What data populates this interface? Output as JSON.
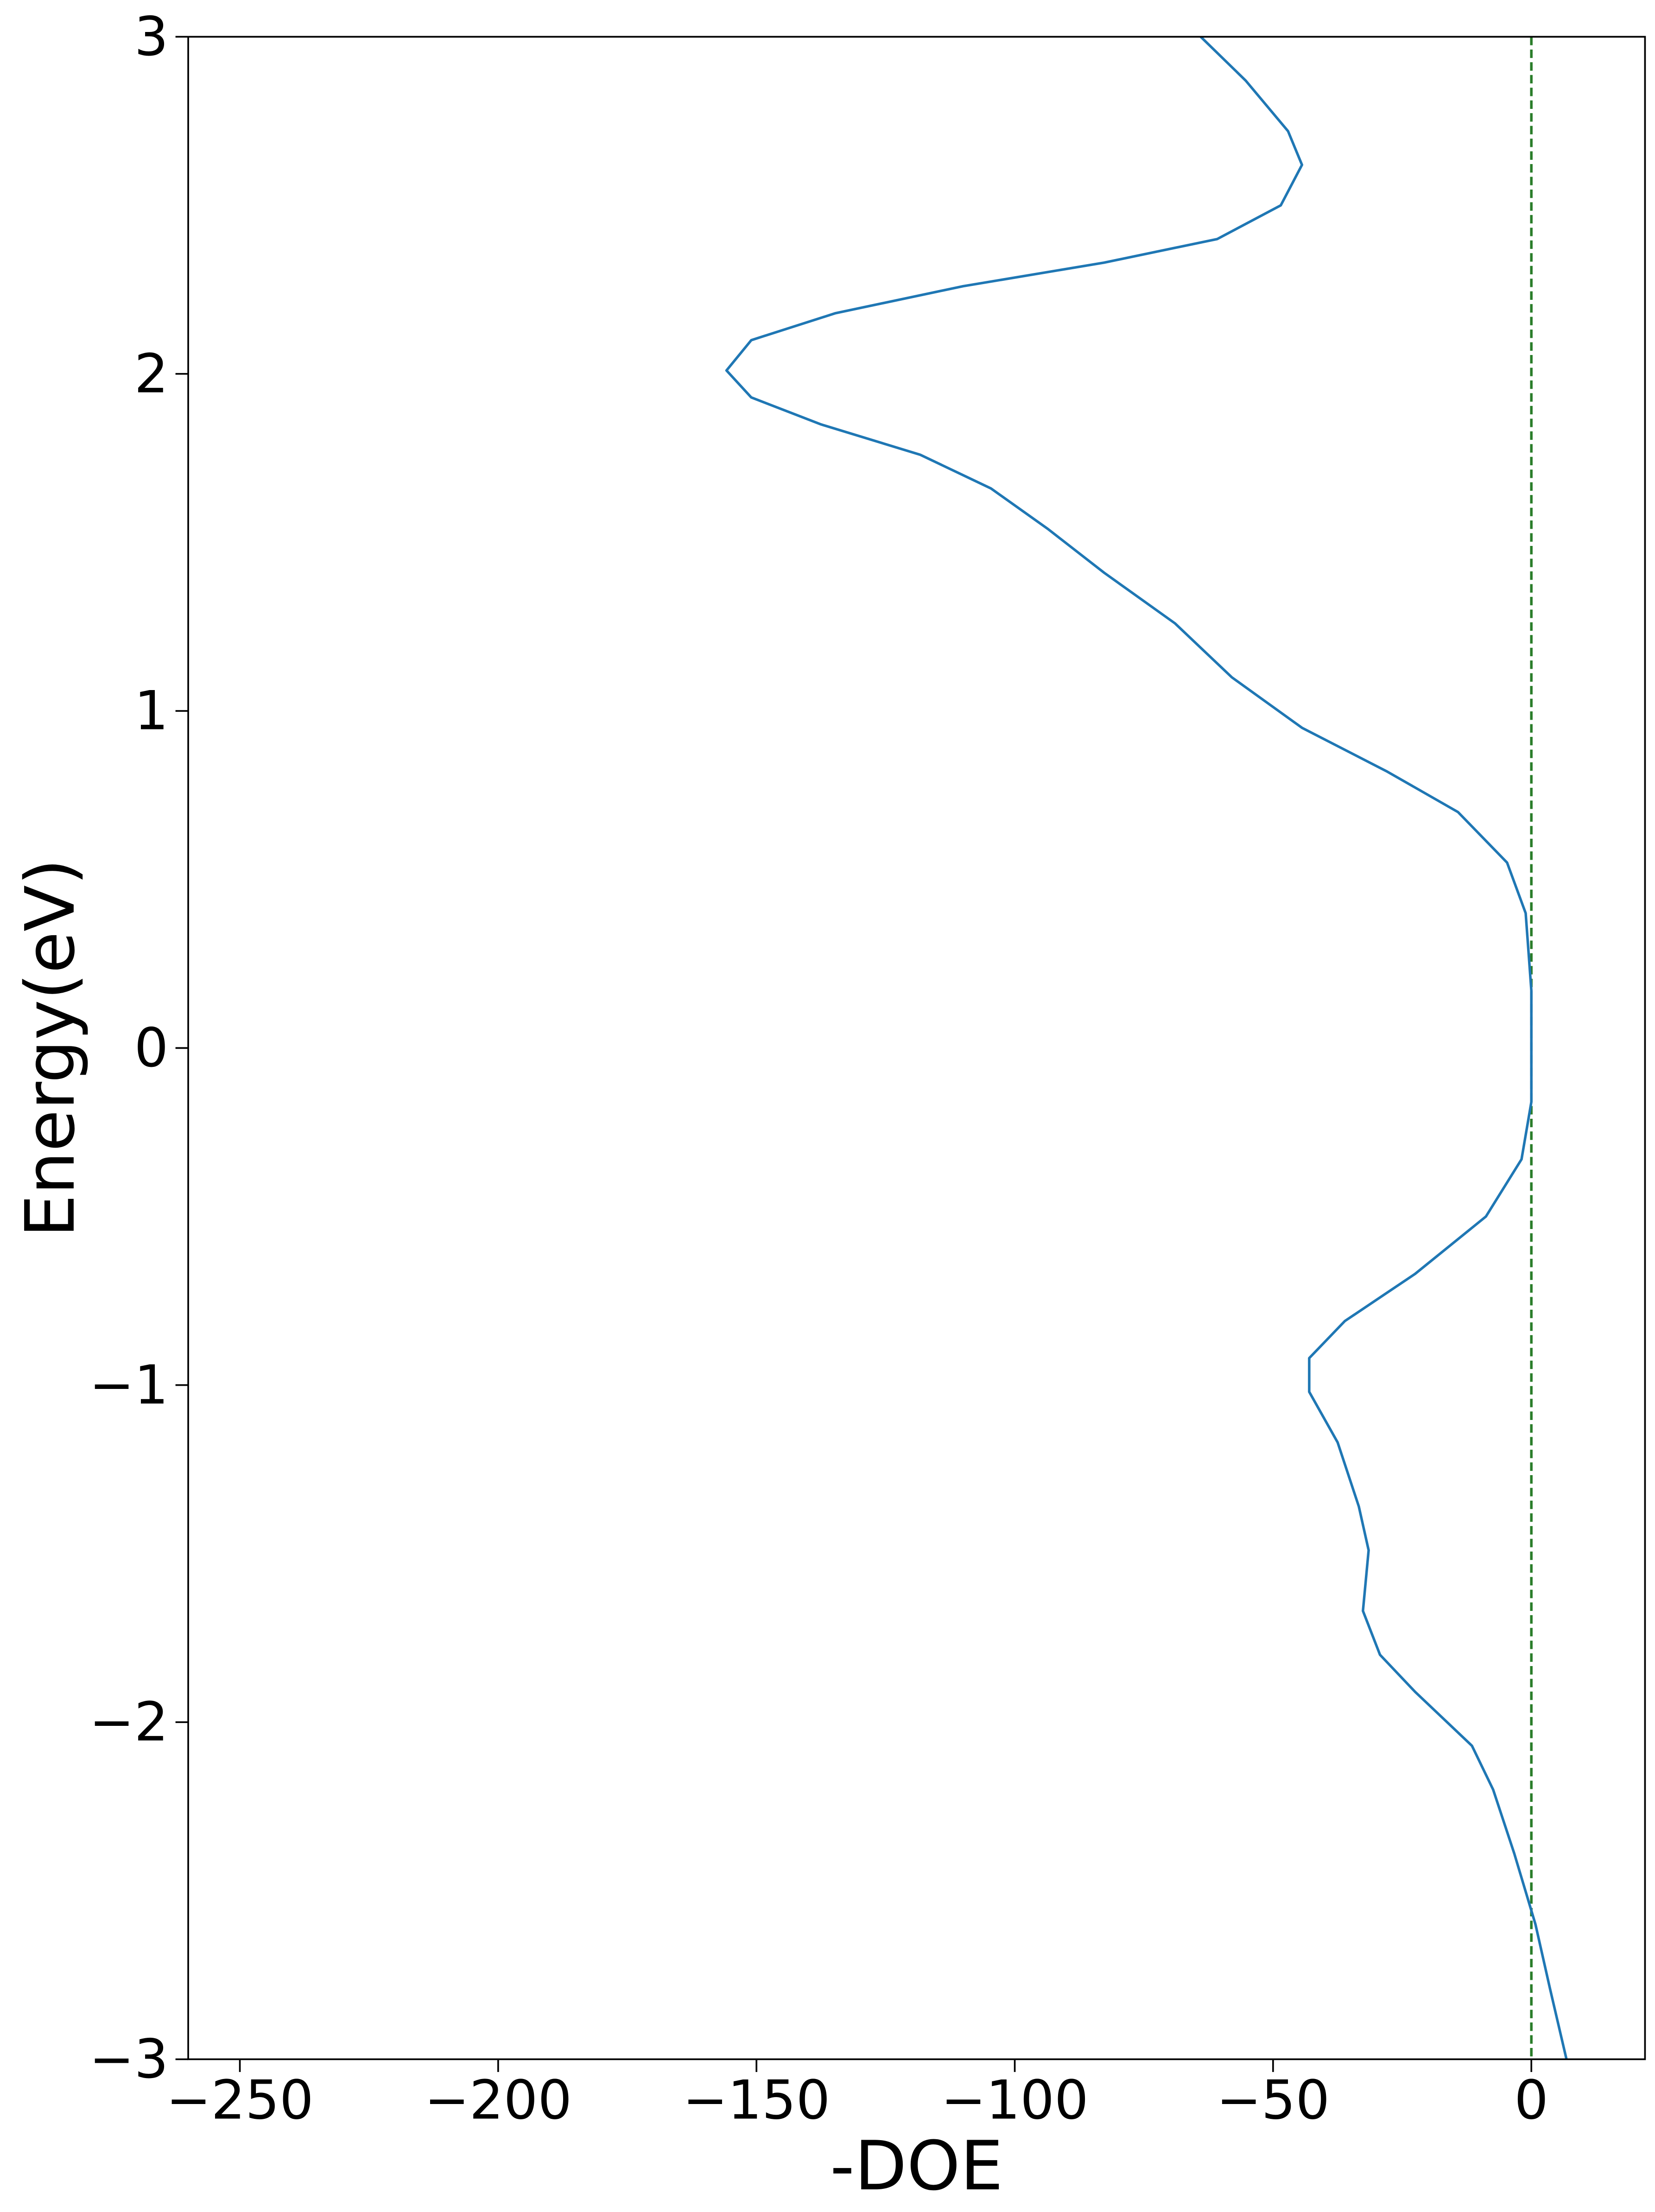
{
  "chart_data": {
    "type": "line",
    "xlabel": "-DOE",
    "ylabel": "Energy(eV)",
    "xlim": [
      -260,
      22
    ],
    "ylim": [
      -3,
      3
    ],
    "xticks": [
      {
        "value": -250,
        "label": "−250"
      },
      {
        "value": -200,
        "label": "−200"
      },
      {
        "value": -150,
        "label": "−150"
      },
      {
        "value": -100,
        "label": "−100"
      },
      {
        "value": -50,
        "label": "−50"
      },
      0
    ],
    "yticks": [
      {
        "value": -3,
        "label": "−3"
      },
      {
        "value": -2,
        "label": "−2"
      },
      {
        "value": -1,
        "label": "−1"
      },
      0,
      1,
      2,
      3
    ],
    "vline": {
      "x": 0,
      "color": "#2a7d2a",
      "style": "dashed"
    },
    "x": [
      -64,
      -55.3,
      -47.1,
      -44.4,
      -48.5,
      -60.8,
      -82.7,
      -110,
      -134.7,
      -151,
      -155.8,
      -151,
      -137.5,
      -118.3,
      -104.6,
      -93.6,
      -82.7,
      -69,
      -58,
      -44.4,
      -27.9,
      -14.2,
      -4.7,
      -1.1,
      0,
      0,
      -1.9,
      -8.8,
      -22.5,
      -36.1,
      -43,
      -43,
      -37.5,
      -33.4,
      -31.5,
      -32.6,
      -29.3,
      -22.5,
      -11.5,
      -7.4,
      -3.3,
      0.8,
      3.6,
      6.8
    ],
    "series": [
      {
        "color": "#1f77b4",
        "values": [
          3.0,
          2.87,
          2.72,
          2.62,
          2.5,
          2.4,
          2.33,
          2.26,
          2.18,
          2.1,
          2.01,
          1.93,
          1.85,
          1.76,
          1.66,
          1.54,
          1.41,
          1.26,
          1.1,
          0.95,
          0.82,
          0.7,
          0.55,
          0.4,
          0.17,
          -0.16,
          -0.33,
          -0.5,
          -0.67,
          -0.81,
          -0.92,
          -1.02,
          -1.17,
          -1.36,
          -1.49,
          -1.67,
          -1.8,
          -1.91,
          -2.07,
          -2.2,
          -2.39,
          -2.6,
          -2.79,
          -3.0
        ]
      }
    ]
  }
}
